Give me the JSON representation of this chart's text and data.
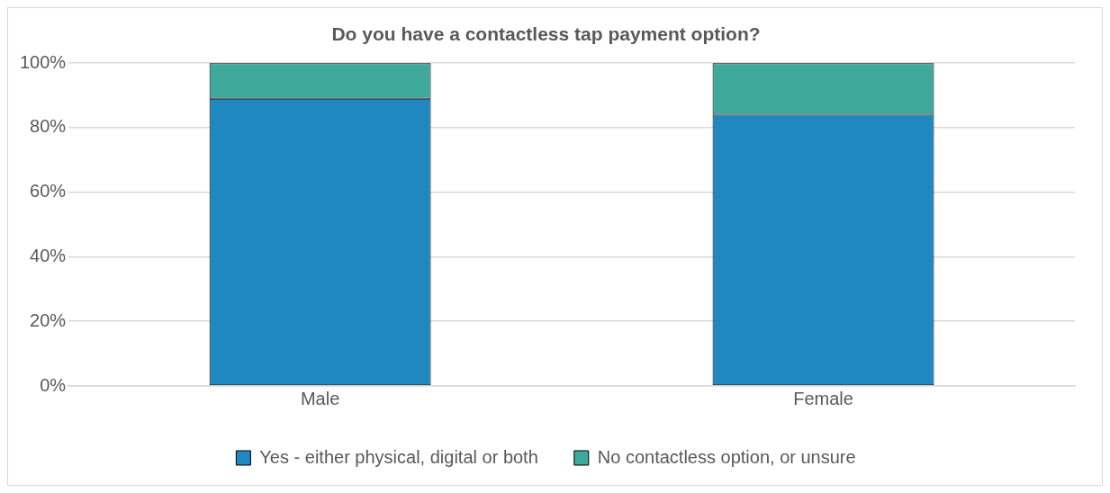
{
  "chart_data": {
    "type": "bar",
    "title": "Do you have a contactless tap payment option?",
    "categories": [
      "Male",
      "Female"
    ],
    "stacked": true,
    "series": [
      {
        "name": "Yes - either physical, digital or both",
        "color": "#1f88c0",
        "values": [
          89,
          84
        ]
      },
      {
        "name": "No contactless option, or unsure",
        "color": "#3fa99b",
        "values": [
          11,
          16
        ]
      }
    ],
    "ylim": [
      0,
      100
    ],
    "yticks": [
      {
        "value": 0,
        "label": "0%"
      },
      {
        "value": 20,
        "label": "20%"
      },
      {
        "value": 40,
        "label": "40%"
      },
      {
        "value": 60,
        "label": "60%"
      },
      {
        "value": 80,
        "label": "80%"
      },
      {
        "value": 100,
        "label": "100%"
      }
    ],
    "grid": "y",
    "legend": "bottom"
  }
}
